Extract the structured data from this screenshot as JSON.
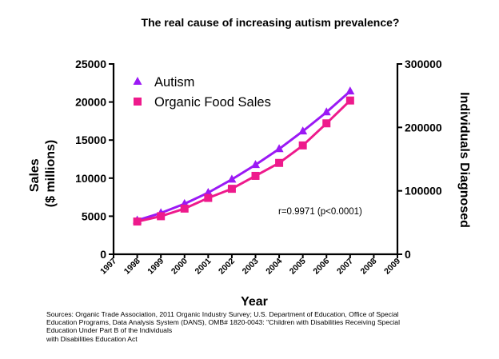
{
  "chart_data": {
    "type": "line",
    "title": "The real cause of increasing autism prevalence?",
    "xlabel": "Year",
    "ylabel_left_lines": [
      "Sales",
      "($ millions)"
    ],
    "ylabel_right": "Individuals Diagnosed",
    "x": [
      1998,
      1999,
      2000,
      2001,
      2002,
      2003,
      2004,
      2005,
      2006,
      2007
    ],
    "x_ticks": [
      "1997",
      "1998",
      "1999",
      "2000",
      "2001",
      "2002",
      "2003",
      "2004",
      "2005",
      "2006",
      "2007",
      "2008",
      "2009"
    ],
    "xlim": [
      1997,
      2009
    ],
    "ylim_left": [
      0,
      25000
    ],
    "ylim_right": [
      0,
      300000
    ],
    "y_ticks_left": [
      "0",
      "5000",
      "10000",
      "15000",
      "20000",
      "25000"
    ],
    "y_ticks_right": [
      "0",
      "100000",
      "200000",
      "300000"
    ],
    "series": [
      {
        "name": "Autism",
        "axis": "right",
        "marker": "triangle",
        "color": "#9b19f5",
        "values": [
          53500,
          65000,
          79500,
          97000,
          118000,
          141000,
          166000,
          194000,
          224000,
          257000
        ]
      },
      {
        "name": "Organic Food Sales",
        "axis": "left",
        "marker": "square",
        "color": "#ee1a8c",
        "values": [
          4300,
          5000,
          6000,
          7400,
          8600,
          10300,
          12000,
          14300,
          17200,
          20200
        ]
      }
    ],
    "annotation": "r=0.9971 (p<0.0001)",
    "legend": "top-left",
    "grid": false
  },
  "footer": {
    "source_lines": [
      "Sources: Organic Trade Association,  2011 Organic Industry Survey; U.S. Department of Education, Office of Special",
      "Education Programs, Data Analysis System (DANS), OMB# 1820-0043: \"Children with Disabilities Receiving Special",
      "Education Under Part B of the Individuals",
      "with Disabilities Education Act"
    ]
  }
}
